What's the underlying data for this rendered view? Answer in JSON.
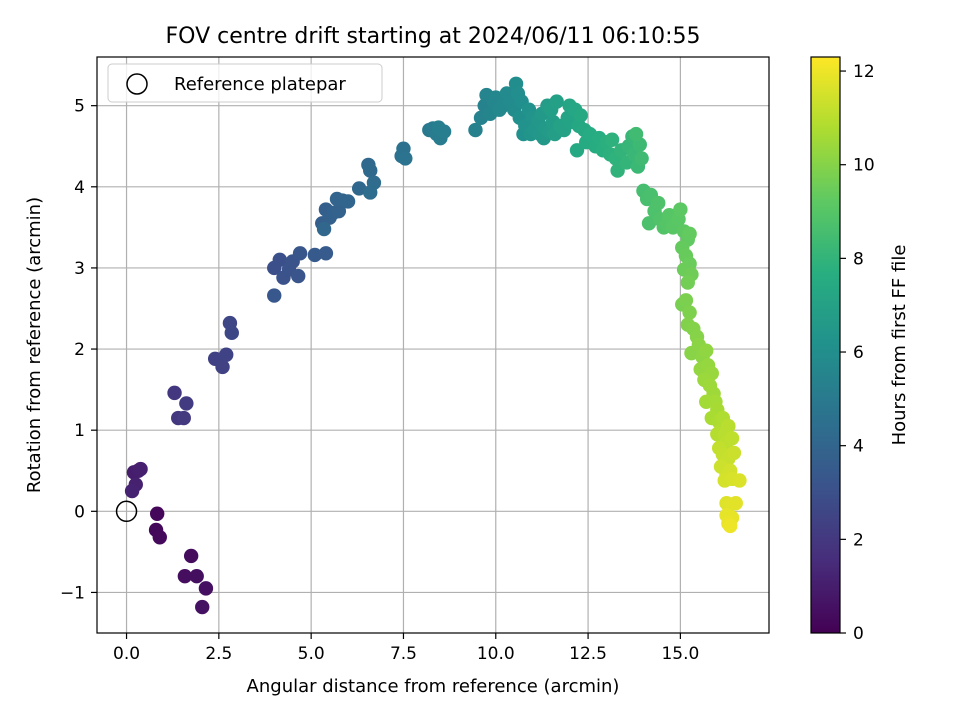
{
  "chart_data": {
    "type": "scatter",
    "title": "FOV centre drift starting at 2024/06/11 06:10:55",
    "xlabel": "Angular distance from reference (arcmin)",
    "ylabel": "Rotation from reference (arcmin)",
    "colorbar_label": "Hours from first FF file",
    "xlim": [
      -0.8,
      17.4
    ],
    "ylim": [
      -1.5,
      5.6
    ],
    "clim": [
      0,
      12.3
    ],
    "x_ticks": [
      0.0,
      2.5,
      5.0,
      7.5,
      10.0,
      12.5,
      15.0
    ],
    "x_tick_labels": [
      "0.0",
      "2.5",
      "5.0",
      "7.5",
      "10.0",
      "12.5",
      "15.0"
    ],
    "y_ticks": [
      -1,
      0,
      1,
      2,
      3,
      4,
      5
    ],
    "y_tick_labels": [
      "−1",
      "0",
      "1",
      "2",
      "3",
      "4",
      "5"
    ],
    "colorbar_ticks": [
      0,
      2,
      4,
      6,
      8,
      10,
      12
    ],
    "colorbar_tick_labels": [
      "0",
      "2",
      "4",
      "6",
      "8",
      "10",
      "12"
    ],
    "colormap": "viridis",
    "grid": true,
    "legend_placement": "top-left",
    "reference": {
      "name": "Reference platepar",
      "x": 0.0,
      "y": 0.0
    },
    "points": [
      {
        "x": 0.83,
        "y": -0.03,
        "t": 0.2
      },
      {
        "x": 0.8,
        "y": -0.23,
        "t": 0.25
      },
      {
        "x": 0.9,
        "y": -0.32,
        "t": 0.3
      },
      {
        "x": 1.75,
        "y": -0.55,
        "t": 0.4
      },
      {
        "x": 1.58,
        "y": -0.8,
        "t": 0.45
      },
      {
        "x": 1.9,
        "y": -0.8,
        "t": 0.5
      },
      {
        "x": 2.15,
        "y": -0.95,
        "t": 0.55
      },
      {
        "x": 2.05,
        "y": -1.18,
        "t": 0.6
      },
      {
        "x": 0.2,
        "y": 0.48,
        "t": 1.0
      },
      {
        "x": 0.32,
        "y": 0.5,
        "t": 1.05
      },
      {
        "x": 0.38,
        "y": 0.52,
        "t": 1.1
      },
      {
        "x": 0.25,
        "y": 0.33,
        "t": 1.15
      },
      {
        "x": 0.15,
        "y": 0.25,
        "t": 1.2
      },
      {
        "x": 1.3,
        "y": 1.46,
        "t": 2.0
      },
      {
        "x": 1.4,
        "y": 1.15,
        "t": 2.05
      },
      {
        "x": 1.55,
        "y": 1.15,
        "t": 2.1
      },
      {
        "x": 1.62,
        "y": 1.33,
        "t": 2.15
      },
      {
        "x": 2.4,
        "y": 1.88,
        "t": 2.4
      },
      {
        "x": 2.6,
        "y": 1.78,
        "t": 2.45
      },
      {
        "x": 2.7,
        "y": 1.93,
        "t": 2.5
      },
      {
        "x": 2.8,
        "y": 2.32,
        "t": 2.6
      },
      {
        "x": 2.85,
        "y": 2.2,
        "t": 2.65
      },
      {
        "x": 4.0,
        "y": 3.0,
        "t": 3.0
      },
      {
        "x": 4.15,
        "y": 3.1,
        "t": 3.05
      },
      {
        "x": 4.25,
        "y": 2.88,
        "t": 3.1
      },
      {
        "x": 4.4,
        "y": 2.98,
        "t": 3.15
      },
      {
        "x": 4.5,
        "y": 3.08,
        "t": 3.2
      },
      {
        "x": 4.65,
        "y": 2.9,
        "t": 3.25
      },
      {
        "x": 4.7,
        "y": 3.18,
        "t": 3.3
      },
      {
        "x": 4.0,
        "y": 2.66,
        "t": 3.35
      },
      {
        "x": 5.1,
        "y": 3.16,
        "t": 3.5
      },
      {
        "x": 5.4,
        "y": 3.18,
        "t": 3.55
      },
      {
        "x": 5.3,
        "y": 3.55,
        "t": 3.7
      },
      {
        "x": 5.4,
        "y": 3.72,
        "t": 3.75
      },
      {
        "x": 5.5,
        "y": 3.62,
        "t": 3.8
      },
      {
        "x": 5.6,
        "y": 3.68,
        "t": 3.85
      },
      {
        "x": 5.75,
        "y": 3.7,
        "t": 3.9
      },
      {
        "x": 5.85,
        "y": 3.83,
        "t": 3.95
      },
      {
        "x": 5.7,
        "y": 3.85,
        "t": 4.0
      },
      {
        "x": 6.0,
        "y": 3.82,
        "t": 4.05
      },
      {
        "x": 5.35,
        "y": 3.48,
        "t": 4.1
      },
      {
        "x": 6.3,
        "y": 3.98,
        "t": 4.2
      },
      {
        "x": 6.55,
        "y": 4.27,
        "t": 4.25
      },
      {
        "x": 6.6,
        "y": 4.2,
        "t": 4.3
      },
      {
        "x": 6.7,
        "y": 4.05,
        "t": 4.35
      },
      {
        "x": 6.6,
        "y": 3.93,
        "t": 4.4
      },
      {
        "x": 7.5,
        "y": 4.47,
        "t": 4.6
      },
      {
        "x": 7.45,
        "y": 4.38,
        "t": 4.65
      },
      {
        "x": 7.55,
        "y": 4.35,
        "t": 4.7
      },
      {
        "x": 8.2,
        "y": 4.7,
        "t": 5.0
      },
      {
        "x": 8.3,
        "y": 4.72,
        "t": 5.05
      },
      {
        "x": 8.4,
        "y": 4.65,
        "t": 5.1
      },
      {
        "x": 8.5,
        "y": 4.6,
        "t": 5.15
      },
      {
        "x": 8.6,
        "y": 4.68,
        "t": 5.2
      },
      {
        "x": 8.45,
        "y": 4.73,
        "t": 5.25
      },
      {
        "x": 9.45,
        "y": 4.7,
        "t": 5.4
      },
      {
        "x": 9.6,
        "y": 4.85,
        "t": 5.45
      },
      {
        "x": 9.7,
        "y": 5.0,
        "t": 5.5
      },
      {
        "x": 9.75,
        "y": 5.13,
        "t": 5.55
      },
      {
        "x": 9.85,
        "y": 4.9,
        "t": 5.6
      },
      {
        "x": 9.95,
        "y": 5.05,
        "t": 5.65
      },
      {
        "x": 10.0,
        "y": 5.1,
        "t": 5.7
      },
      {
        "x": 10.1,
        "y": 4.95,
        "t": 5.75
      },
      {
        "x": 10.2,
        "y": 5.0,
        "t": 5.8
      },
      {
        "x": 10.3,
        "y": 5.15,
        "t": 5.85
      },
      {
        "x": 10.4,
        "y": 5.05,
        "t": 5.9
      },
      {
        "x": 10.5,
        "y": 4.95,
        "t": 5.95
      },
      {
        "x": 10.55,
        "y": 5.27,
        "t": 6.0
      },
      {
        "x": 10.6,
        "y": 5.15,
        "t": 6.05
      },
      {
        "x": 10.7,
        "y": 5.05,
        "t": 6.1
      },
      {
        "x": 10.65,
        "y": 4.85,
        "t": 6.15
      },
      {
        "x": 10.75,
        "y": 4.65,
        "t": 6.2
      },
      {
        "x": 10.8,
        "y": 4.75,
        "t": 6.25
      },
      {
        "x": 10.9,
        "y": 4.95,
        "t": 6.3
      },
      {
        "x": 11.0,
        "y": 4.85,
        "t": 6.35
      },
      {
        "x": 10.95,
        "y": 4.65,
        "t": 6.4
      },
      {
        "x": 11.05,
        "y": 4.7,
        "t": 6.45
      },
      {
        "x": 11.15,
        "y": 4.82,
        "t": 6.5
      },
      {
        "x": 11.2,
        "y": 4.65,
        "t": 6.55
      },
      {
        "x": 11.3,
        "y": 4.6,
        "t": 6.6
      },
      {
        "x": 11.25,
        "y": 4.9,
        "t": 6.65
      },
      {
        "x": 11.35,
        "y": 4.72,
        "t": 6.7
      },
      {
        "x": 11.45,
        "y": 4.68,
        "t": 6.75
      },
      {
        "x": 11.4,
        "y": 5.0,
        "t": 6.8
      },
      {
        "x": 11.55,
        "y": 4.8,
        "t": 6.85
      },
      {
        "x": 11.6,
        "y": 4.65,
        "t": 6.9
      },
      {
        "x": 11.5,
        "y": 4.95,
        "t": 6.95
      },
      {
        "x": 11.65,
        "y": 5.05,
        "t": 7.0
      },
      {
        "x": 11.75,
        "y": 4.75,
        "t": 7.05
      },
      {
        "x": 11.85,
        "y": 4.7,
        "t": 7.1
      },
      {
        "x": 11.95,
        "y": 4.85,
        "t": 7.15
      },
      {
        "x": 12.05,
        "y": 4.8,
        "t": 7.2
      },
      {
        "x": 12.0,
        "y": 5.0,
        "t": 7.25
      },
      {
        "x": 12.15,
        "y": 4.95,
        "t": 7.3
      },
      {
        "x": 12.25,
        "y": 4.75,
        "t": 7.35
      },
      {
        "x": 12.3,
        "y": 4.88,
        "t": 7.4
      },
      {
        "x": 12.2,
        "y": 4.45,
        "t": 7.45
      },
      {
        "x": 12.4,
        "y": 4.7,
        "t": 7.5
      },
      {
        "x": 12.45,
        "y": 4.55,
        "t": 7.55
      },
      {
        "x": 12.55,
        "y": 4.65,
        "t": 7.6
      },
      {
        "x": 12.7,
        "y": 4.5,
        "t": 7.65
      },
      {
        "x": 12.8,
        "y": 4.6,
        "t": 7.7
      },
      {
        "x": 12.9,
        "y": 4.45,
        "t": 7.75
      },
      {
        "x": 13.0,
        "y": 4.55,
        "t": 7.8
      },
      {
        "x": 13.1,
        "y": 4.4,
        "t": 7.85
      },
      {
        "x": 13.15,
        "y": 4.58,
        "t": 7.9
      },
      {
        "x": 13.25,
        "y": 4.35,
        "t": 7.95
      },
      {
        "x": 13.3,
        "y": 4.2,
        "t": 8.0
      },
      {
        "x": 13.4,
        "y": 4.45,
        "t": 8.05
      },
      {
        "x": 13.55,
        "y": 4.3,
        "t": 8.1
      },
      {
        "x": 13.6,
        "y": 4.5,
        "t": 8.15
      },
      {
        "x": 13.7,
        "y": 4.62,
        "t": 8.2
      },
      {
        "x": 13.75,
        "y": 4.4,
        "t": 8.25
      },
      {
        "x": 13.85,
        "y": 4.25,
        "t": 8.3
      },
      {
        "x": 13.9,
        "y": 4.52,
        "t": 8.35
      },
      {
        "x": 13.95,
        "y": 4.35,
        "t": 8.4
      },
      {
        "x": 13.8,
        "y": 4.65,
        "t": 8.45
      },
      {
        "x": 14.0,
        "y": 3.95,
        "t": 8.6
      },
      {
        "x": 14.1,
        "y": 3.85,
        "t": 8.65
      },
      {
        "x": 14.2,
        "y": 3.9,
        "t": 8.7
      },
      {
        "x": 14.15,
        "y": 3.55,
        "t": 8.75
      },
      {
        "x": 14.3,
        "y": 3.7,
        "t": 8.8
      },
      {
        "x": 14.4,
        "y": 3.8,
        "t": 8.85
      },
      {
        "x": 14.45,
        "y": 3.6,
        "t": 8.9
      },
      {
        "x": 14.55,
        "y": 3.5,
        "t": 8.95
      },
      {
        "x": 14.65,
        "y": 3.55,
        "t": 9.0
      },
      {
        "x": 14.7,
        "y": 3.65,
        "t": 9.05
      },
      {
        "x": 14.8,
        "y": 3.5,
        "t": 9.1
      },
      {
        "x": 14.95,
        "y": 3.6,
        "t": 9.15
      },
      {
        "x": 15.0,
        "y": 3.72,
        "t": 9.2
      },
      {
        "x": 15.1,
        "y": 3.45,
        "t": 9.25
      },
      {
        "x": 15.2,
        "y": 3.35,
        "t": 9.3
      },
      {
        "x": 15.25,
        "y": 3.42,
        "t": 9.35
      },
      {
        "x": 15.05,
        "y": 3.25,
        "t": 9.4
      },
      {
        "x": 15.15,
        "y": 3.15,
        "t": 9.45
      },
      {
        "x": 15.25,
        "y": 3.05,
        "t": 9.5
      },
      {
        "x": 15.1,
        "y": 2.98,
        "t": 9.55
      },
      {
        "x": 15.3,
        "y": 2.92,
        "t": 9.6
      },
      {
        "x": 15.2,
        "y": 2.82,
        "t": 9.65
      },
      {
        "x": 15.05,
        "y": 2.55,
        "t": 9.8
      },
      {
        "x": 15.15,
        "y": 2.6,
        "t": 9.85
      },
      {
        "x": 15.25,
        "y": 2.45,
        "t": 9.9
      },
      {
        "x": 15.2,
        "y": 2.3,
        "t": 9.95
      },
      {
        "x": 15.35,
        "y": 2.25,
        "t": 10.0
      },
      {
        "x": 15.45,
        "y": 2.15,
        "t": 10.05
      },
      {
        "x": 15.3,
        "y": 1.95,
        "t": 10.1
      },
      {
        "x": 15.5,
        "y": 2.05,
        "t": 10.15
      },
      {
        "x": 15.6,
        "y": 1.9,
        "t": 10.2
      },
      {
        "x": 15.7,
        "y": 1.98,
        "t": 10.25
      },
      {
        "x": 15.55,
        "y": 1.75,
        "t": 10.3
      },
      {
        "x": 15.75,
        "y": 1.8,
        "t": 10.35
      },
      {
        "x": 15.85,
        "y": 1.7,
        "t": 10.4
      },
      {
        "x": 15.65,
        "y": 1.62,
        "t": 10.45
      },
      {
        "x": 15.8,
        "y": 1.55,
        "t": 10.5
      },
      {
        "x": 15.9,
        "y": 1.45,
        "t": 10.55
      },
      {
        "x": 15.7,
        "y": 1.35,
        "t": 10.6
      },
      {
        "x": 15.95,
        "y": 1.35,
        "t": 10.65
      },
      {
        "x": 16.0,
        "y": 1.25,
        "t": 10.7
      },
      {
        "x": 15.85,
        "y": 1.15,
        "t": 10.75
      },
      {
        "x": 16.05,
        "y": 1.1,
        "t": 10.8
      },
      {
        "x": 16.15,
        "y": 1.15,
        "t": 10.85
      },
      {
        "x": 16.1,
        "y": 1.0,
        "t": 10.9
      },
      {
        "x": 16.0,
        "y": 0.95,
        "t": 10.95
      },
      {
        "x": 16.2,
        "y": 0.95,
        "t": 11.0
      },
      {
        "x": 16.3,
        "y": 1.05,
        "t": 11.05
      },
      {
        "x": 16.25,
        "y": 0.85,
        "t": 11.1
      },
      {
        "x": 16.4,
        "y": 0.9,
        "t": 11.15
      },
      {
        "x": 16.05,
        "y": 0.78,
        "t": 11.2
      },
      {
        "x": 16.15,
        "y": 0.7,
        "t": 11.25
      },
      {
        "x": 16.3,
        "y": 0.65,
        "t": 11.3
      },
      {
        "x": 16.45,
        "y": 0.72,
        "t": 11.35
      },
      {
        "x": 16.1,
        "y": 0.55,
        "t": 11.4
      },
      {
        "x": 16.25,
        "y": 0.45,
        "t": 11.45
      },
      {
        "x": 16.35,
        "y": 0.5,
        "t": 11.5
      },
      {
        "x": 16.2,
        "y": 0.38,
        "t": 11.55
      },
      {
        "x": 16.4,
        "y": 0.4,
        "t": 11.6
      },
      {
        "x": 16.6,
        "y": 0.38,
        "t": 11.65
      },
      {
        "x": 16.25,
        "y": 0.1,
        "t": 11.7
      },
      {
        "x": 16.35,
        "y": 0.08,
        "t": 11.75
      },
      {
        "x": 16.5,
        "y": 0.1,
        "t": 11.8
      },
      {
        "x": 16.25,
        "y": -0.05,
        "t": 11.85
      },
      {
        "x": 16.4,
        "y": -0.08,
        "t": 11.9
      },
      {
        "x": 16.3,
        "y": -0.15,
        "t": 11.95
      },
      {
        "x": 16.35,
        "y": -0.18,
        "t": 12.0
      }
    ]
  }
}
